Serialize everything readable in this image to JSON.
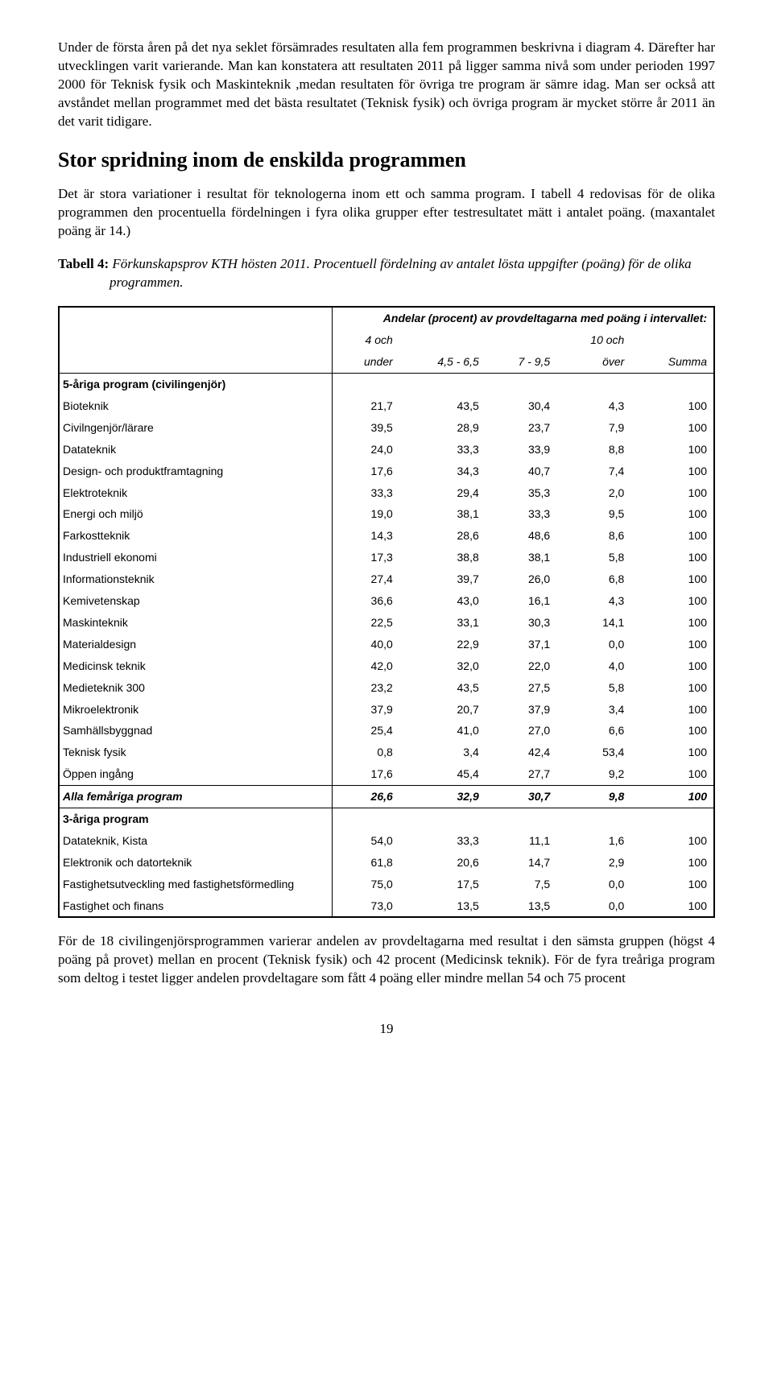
{
  "intro_paragraph": "Under de första åren på det nya seklet försämrades resultaten alla fem programmen beskrivna i diagram 4. Därefter har utvecklingen varit varierande. Man kan konstatera att resultaten 2011 på ligger samma nivå som under perioden 1997 2000 för Teknisk fysik och Maskinteknik ,medan resultaten för övriga tre program är sämre idag. Man ser också att avståndet mellan programmet med det bästa resultatet (Teknisk fysik) och övriga program är mycket större år 2011 än det varit tidigare.",
  "section_heading": "Stor spridning inom de enskilda programmen",
  "section_paragraph": "Det är stora variationer i resultat för teknologerna inom ett och samma program. I tabell 4 redovisas för de olika programmen den procentuella fördelningen i fyra olika grupper efter testresultatet mätt i antalet poäng. (maxantalet poäng är 14.)",
  "table_caption_lead": "Tabell 4:",
  "table_caption_rest": " Förkunskapsprov KTH hösten 2011. Procentuell fördelning av antalet lösta uppgifter (poäng) för de olika programmen.",
  "table": {
    "super_header": "Andelar (procent) av provdeltagarna med poäng i intervallet:",
    "columns_top": [
      "4 och",
      "",
      "",
      "10 och",
      ""
    ],
    "columns_bottom": [
      "under",
      "4,5 - 6,5",
      "7 - 9,5",
      "över",
      "Summa"
    ],
    "group1_label": "5-åriga program (civilingenjör)",
    "group1_rows": [
      {
        "label": "Bioteknik",
        "vals": [
          "21,7",
          "43,5",
          "30,4",
          "4,3",
          "100"
        ]
      },
      {
        "label": "Civilngenjör/lärare",
        "vals": [
          "39,5",
          "28,9",
          "23,7",
          "7,9",
          "100"
        ]
      },
      {
        "label": "Datateknik",
        "vals": [
          "24,0",
          "33,3",
          "33,9",
          "8,8",
          "100"
        ]
      },
      {
        "label": "Design- och produktframtagning",
        "vals": [
          "17,6",
          "34,3",
          "40,7",
          "7,4",
          "100"
        ]
      },
      {
        "label": "Elektroteknik",
        "vals": [
          "33,3",
          "29,4",
          "35,3",
          "2,0",
          "100"
        ]
      },
      {
        "label": "Energi och miljö",
        "vals": [
          "19,0",
          "38,1",
          "33,3",
          "9,5",
          "100"
        ]
      },
      {
        "label": "Farkostteknik",
        "vals": [
          "14,3",
          "28,6",
          "48,6",
          "8,6",
          "100"
        ]
      },
      {
        "label": "Industriell ekonomi",
        "vals": [
          "17,3",
          "38,8",
          "38,1",
          "5,8",
          "100"
        ]
      },
      {
        "label": "Informationsteknik",
        "vals": [
          "27,4",
          "39,7",
          "26,0",
          "6,8",
          "100"
        ]
      },
      {
        "label": "Kemivetenskap",
        "vals": [
          "36,6",
          "43,0",
          "16,1",
          "4,3",
          "100"
        ]
      },
      {
        "label": "Maskinteknik",
        "vals": [
          "22,5",
          "33,1",
          "30,3",
          "14,1",
          "100"
        ]
      },
      {
        "label": "Materialdesign",
        "vals": [
          "40,0",
          "22,9",
          "37,1",
          "0,0",
          "100"
        ]
      },
      {
        "label": "Medicinsk teknik",
        "vals": [
          "42,0",
          "32,0",
          "22,0",
          "4,0",
          "100"
        ]
      },
      {
        "label": "Medieteknik 300",
        "vals": [
          "23,2",
          "43,5",
          "27,5",
          "5,8",
          "100"
        ]
      },
      {
        "label": "Mikroelektronik",
        "vals": [
          "37,9",
          "20,7",
          "37,9",
          "3,4",
          "100"
        ]
      },
      {
        "label": "Samhällsbyggnad",
        "vals": [
          "25,4",
          "41,0",
          "27,0",
          "6,6",
          "100"
        ]
      },
      {
        "label": "Teknisk fysik",
        "vals": [
          "0,8",
          "3,4",
          "42,4",
          "53,4",
          "100"
        ]
      },
      {
        "label": "Öppen ingång",
        "vals": [
          "17,6",
          "45,4",
          "27,7",
          "9,2",
          "100"
        ]
      }
    ],
    "group1_total": {
      "label": "Alla femåriga program",
      "vals": [
        "26,6",
        "32,9",
        "30,7",
        "9,8",
        "100"
      ]
    },
    "group2_label": "3-åriga program",
    "group2_rows": [
      {
        "label": "Datateknik, Kista",
        "vals": [
          "54,0",
          "33,3",
          "11,1",
          "1,6",
          "100"
        ]
      },
      {
        "label": "Elektronik och datorteknik",
        "vals": [
          "61,8",
          "20,6",
          "14,7",
          "2,9",
          "100"
        ]
      },
      {
        "label": "Fastighetsutveckling med fastighetsförmedling",
        "vals": [
          "75,0",
          "17,5",
          "7,5",
          "0,0",
          "100"
        ]
      },
      {
        "label": "Fastighet och finans",
        "vals": [
          "73,0",
          "13,5",
          "13,5",
          "0,0",
          "100"
        ]
      }
    ]
  },
  "closing_paragraph": "För de 18 civilingenjörsprogrammen varierar andelen av provdeltagarna med resultat i den sämsta gruppen (högst 4 poäng på provet) mellan en procent (Teknisk fysik) och 42 procent (Medicinsk teknik). För de fyra treåriga program som deltog i testet ligger andelen provdeltagare som fått 4 poäng eller mindre mellan 54 och 75 procent",
  "page_number": "19"
}
